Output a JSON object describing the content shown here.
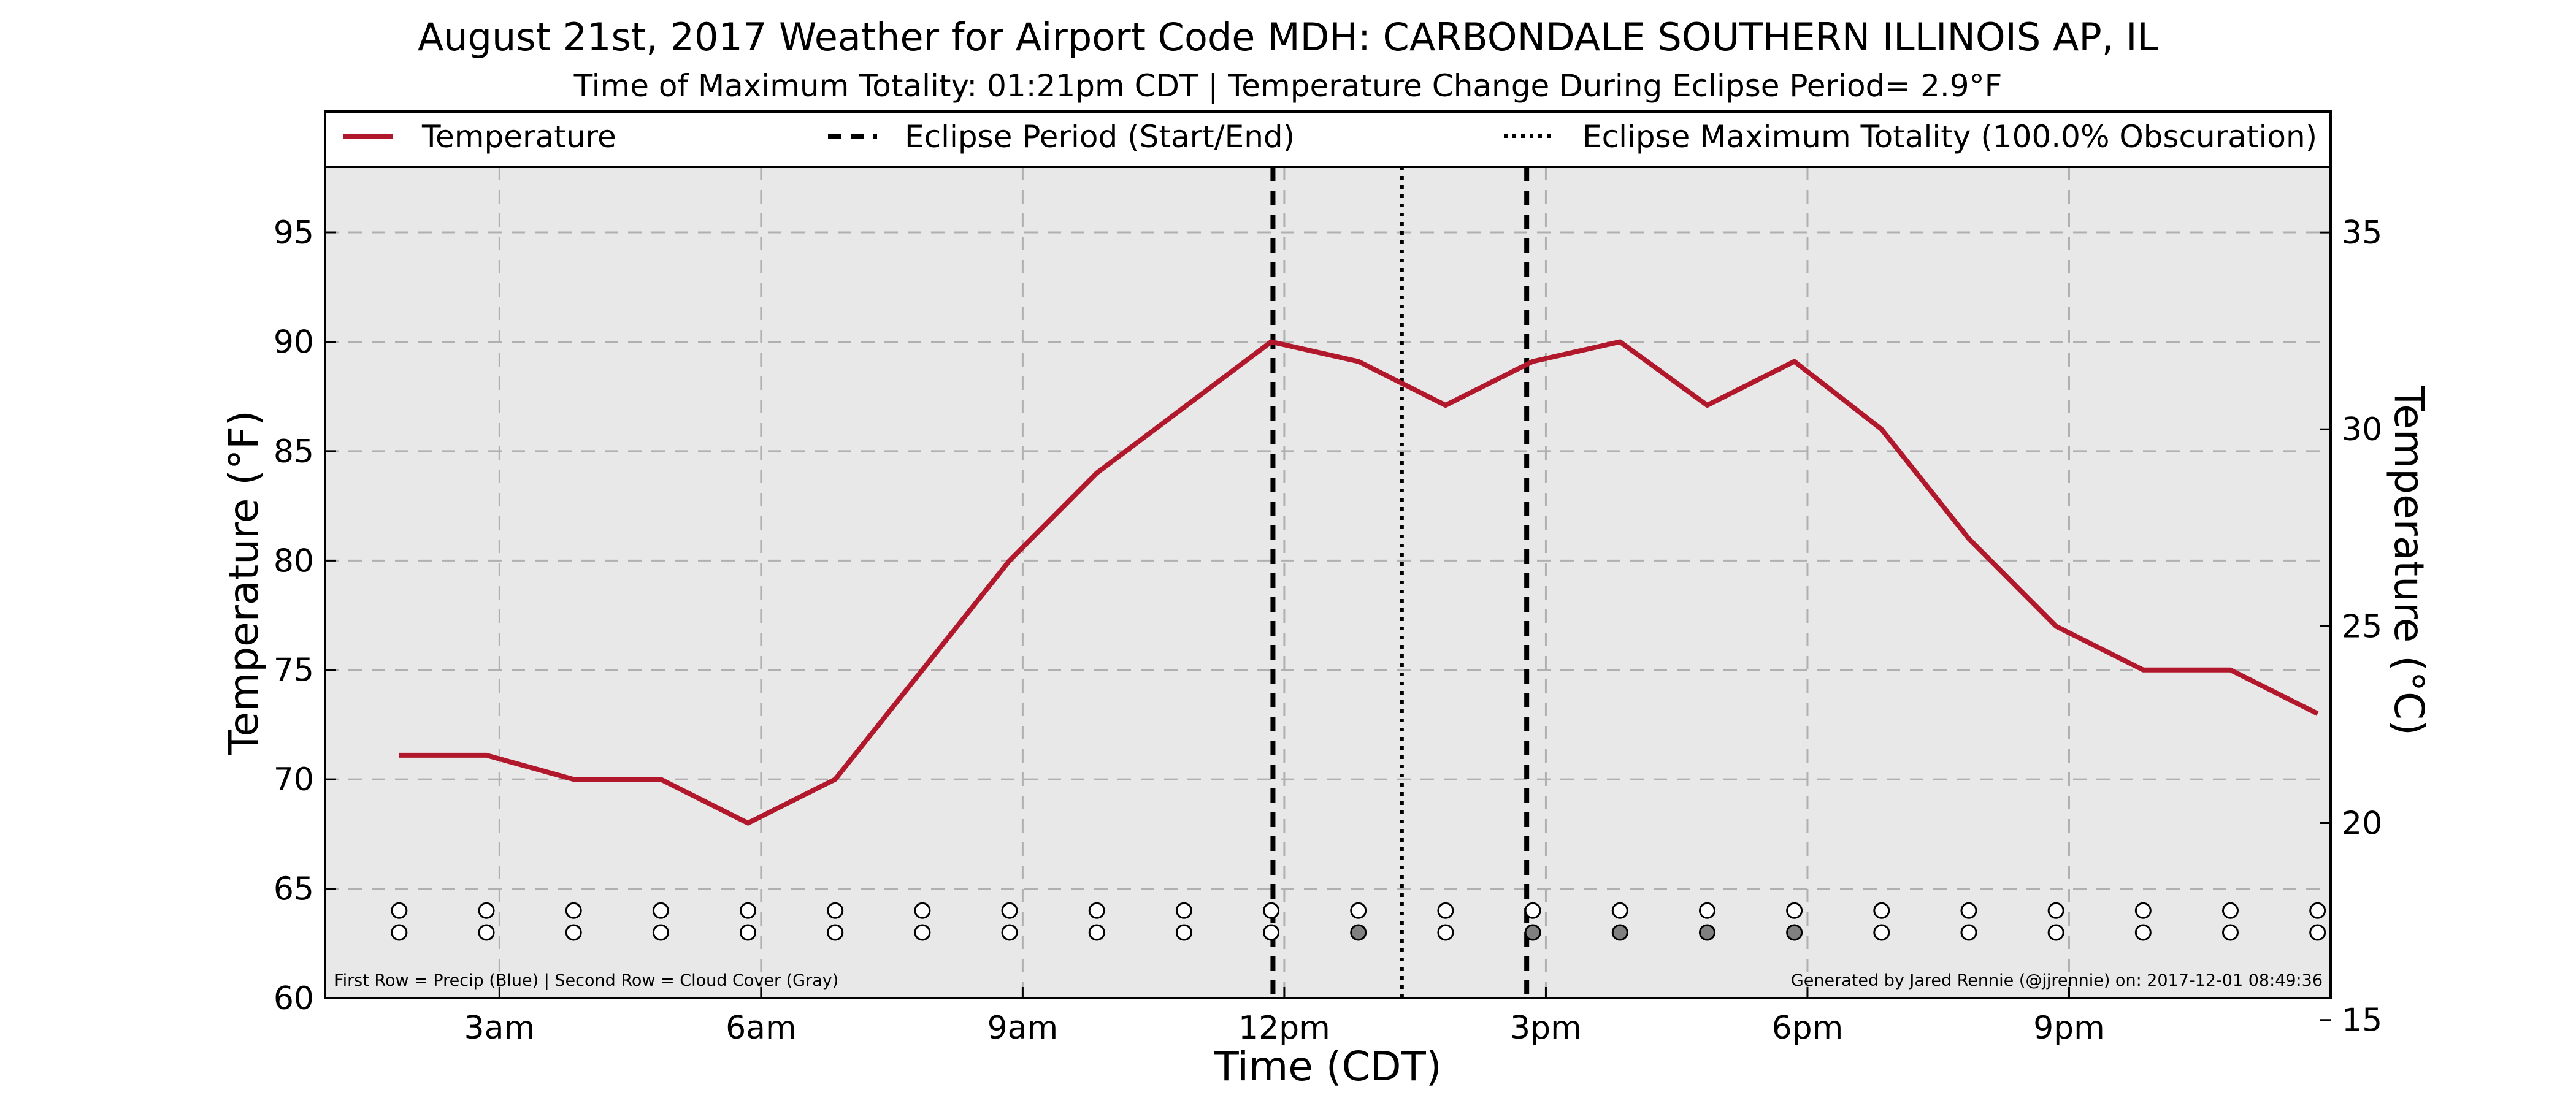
{
  "colors": {
    "temperature_line": "#b2182b",
    "plot_background": "#e8e8e8",
    "cloud_fill": "#808080",
    "precip_fill": "#ffffff"
  },
  "chart_data": {
    "type": "line",
    "title": "August 21st, 2017 Weather for Airport Code MDH: CARBONDALE SOUTHERN ILLINOIS AP, IL",
    "subtitle": "Time of Maximum Totality: 01:21pm CDT | Temperature Change During Eclipse Period= 2.9°F",
    "xlabel": "Time (CDT)",
    "ylabel": "Temperature (°F)",
    "ylabel_right": "Temperature (°C)",
    "x_units": "hours since midnight CDT",
    "xlim": [
      1,
      24
    ],
    "ylim": [
      60,
      98
    ],
    "ylim_right_c": [
      15.556,
      36.667
    ],
    "x_ticks": [
      {
        "x": 3,
        "label": "3am"
      },
      {
        "x": 6,
        "label": "6am"
      },
      {
        "x": 9,
        "label": "9am"
      },
      {
        "x": 12,
        "label": "12pm"
      },
      {
        "x": 15,
        "label": "3pm"
      },
      {
        "x": 18,
        "label": "6pm"
      },
      {
        "x": 21,
        "label": "9pm"
      }
    ],
    "y_ticks": [
      60,
      65,
      70,
      75,
      80,
      85,
      90,
      95
    ],
    "y_ticks_right": [
      15,
      20,
      25,
      30,
      35
    ],
    "grid": true,
    "legend": {
      "placement": "top",
      "entries": [
        {
          "label": "Temperature",
          "style": "solid"
        },
        {
          "label": "Eclipse Period (Start/End)",
          "style": "dashed"
        },
        {
          "label": "Eclipse Maximum Totality (100.0% Obscuration)",
          "style": "dotted"
        }
      ]
    },
    "series": [
      {
        "name": "Temperature",
        "x": [
          1.85,
          2.85,
          3.85,
          4.85,
          5.85,
          6.85,
          7.85,
          8.85,
          9.85,
          10.85,
          11.85,
          12.85,
          13.85,
          14.85,
          15.85,
          16.85,
          17.85,
          18.85,
          19.85,
          20.85,
          21.85,
          22.85,
          23.85
        ],
        "y": [
          71.1,
          71.1,
          70,
          70,
          68,
          70,
          75,
          80,
          84,
          87,
          90,
          89.1,
          87.1,
          89.1,
          90,
          87.1,
          89.1,
          86,
          81,
          77,
          75,
          75,
          73
        ]
      }
    ],
    "eclipse": {
      "start": 11.87,
      "end": 14.78,
      "max_totality": 13.35
    },
    "markers": {
      "times": [
        1.85,
        2.85,
        3.85,
        4.85,
        5.85,
        6.85,
        7.85,
        8.85,
        9.85,
        10.85,
        11.85,
        12.85,
        13.85,
        14.85,
        15.85,
        16.85,
        17.85,
        18.85,
        19.85,
        20.85,
        21.85,
        22.85,
        23.85
      ],
      "precip_row_y": 64.0,
      "cloud_row_y": 63.0,
      "precip": [
        0,
        0,
        0,
        0,
        0,
        0,
        0,
        0,
        0,
        0,
        0,
        0,
        0,
        0,
        0,
        0,
        0,
        0,
        0,
        0,
        0,
        0,
        0
      ],
      "cloud_cover": [
        0,
        0,
        0,
        0,
        0,
        0,
        0,
        0,
        0,
        0,
        0,
        1,
        0,
        1,
        1,
        1,
        1,
        0,
        0,
        0,
        0,
        0,
        0
      ]
    },
    "footnote_left": "First Row = Precip (Blue) | Second Row = Cloud Cover (Gray)",
    "footnote_right": "Generated by Jared Rennie (@jjrennie) on: 2017-12-01 08:49:36"
  }
}
